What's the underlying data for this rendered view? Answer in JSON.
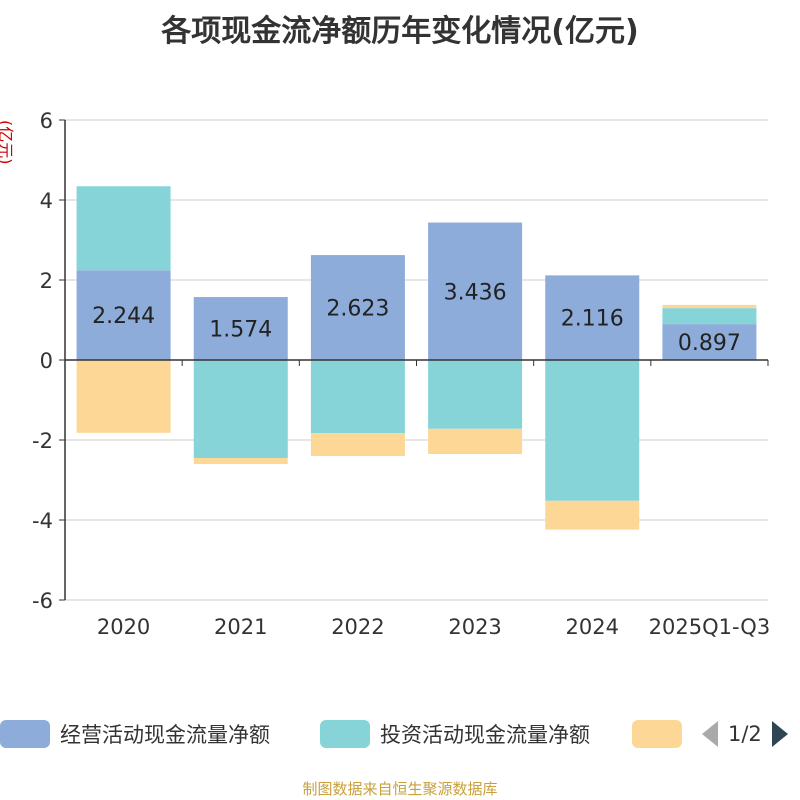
{
  "chart_data": {
    "type": "bar",
    "stacked": true,
    "title": "各项现金流净额历年变化情况(亿元)",
    "ylabel": "(亿元)",
    "ylim": [
      -6,
      6
    ],
    "yticks": [
      6,
      4,
      2,
      0,
      -2,
      -4,
      -6
    ],
    "categories": [
      "2020",
      "2021",
      "2022",
      "2023",
      "2024",
      "2025Q1-Q3"
    ],
    "series": [
      {
        "name": "经营活动现金流量净额",
        "color": "#8eacda",
        "values": [
          2.244,
          1.574,
          2.623,
          3.436,
          2.116,
          0.897
        ]
      },
      {
        "name": "投资活动现金流量净额",
        "color": "#86d4d8",
        "values": [
          2.1,
          -2.45,
          -1.83,
          -1.72,
          -3.52,
          0.4
        ]
      },
      {
        "name": "",
        "color": "#fdd795",
        "values": [
          -1.82,
          -0.15,
          -0.57,
          -0.63,
          -0.72,
          0.08
        ]
      }
    ],
    "data_labels": [
      "2.244",
      "1.574",
      "2.623",
      "3.436",
      "2.116",
      "0.897"
    ]
  },
  "legend": {
    "page": "1/2"
  },
  "footer": "制图数据来自恒生聚源数据库"
}
